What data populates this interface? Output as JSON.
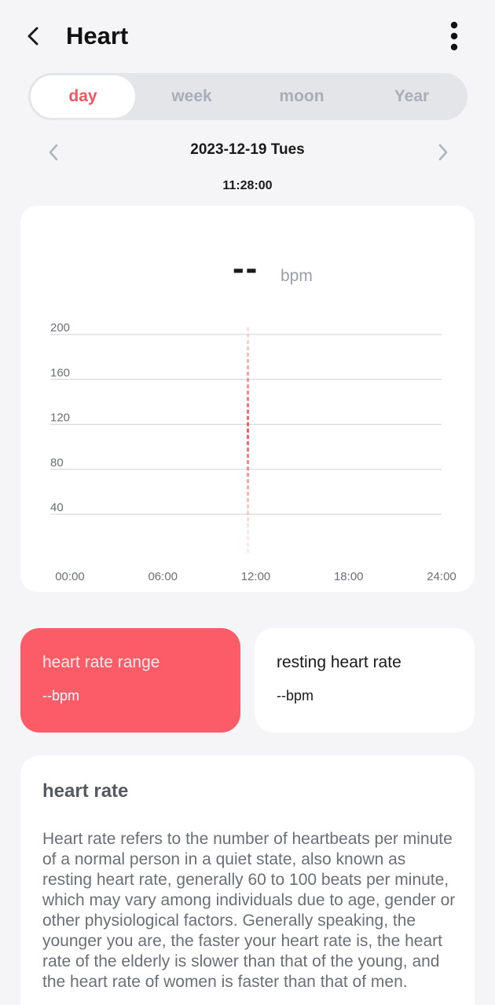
{
  "header": {
    "title": "Heart",
    "back_icon": "chevron-left-icon",
    "more_icon": "more-vertical-icon"
  },
  "tabs": [
    {
      "label": "day",
      "active": true
    },
    {
      "label": "week",
      "active": false
    },
    {
      "label": "moon",
      "active": false
    },
    {
      "label": "Year",
      "active": false
    }
  ],
  "date_nav": {
    "date": "2023-12-19 Tues",
    "time": "11:28:00"
  },
  "current": {
    "value": "--",
    "unit": "bpm"
  },
  "chart_data": {
    "type": "line",
    "title": "",
    "xlabel": "",
    "ylabel": "",
    "y_ticks": [
      "200",
      "160",
      "120",
      "80",
      "40"
    ],
    "x_ticks": [
      "00:00",
      "06:00",
      "12:00",
      "18:00",
      "24:00"
    ],
    "ylim": [
      40,
      200
    ],
    "xlim": [
      0,
      24
    ],
    "cursor_x": 12,
    "series": [],
    "grid": true
  },
  "stats": {
    "range": {
      "title": "heart rate range",
      "value": "--bpm"
    },
    "resting": {
      "title": "resting heart rate",
      "value": "--bpm"
    }
  },
  "info": {
    "title": "heart rate",
    "body": "Heart rate refers to the number of heartbeats per minute of a normal person in a quiet state, also known as resting heart rate, generally 60 to 100 beats per minute, which may vary among individuals due to age, gender or other physiological factors. Generally speaking, the younger you are, the faster your heart rate is, the heart rate of the elderly is slower than that of the young, and the heart rate of women is faster than that of men."
  },
  "colors": {
    "accent": "#f25561",
    "card_range": "#fb5c68",
    "background": "#f5f5f7"
  }
}
